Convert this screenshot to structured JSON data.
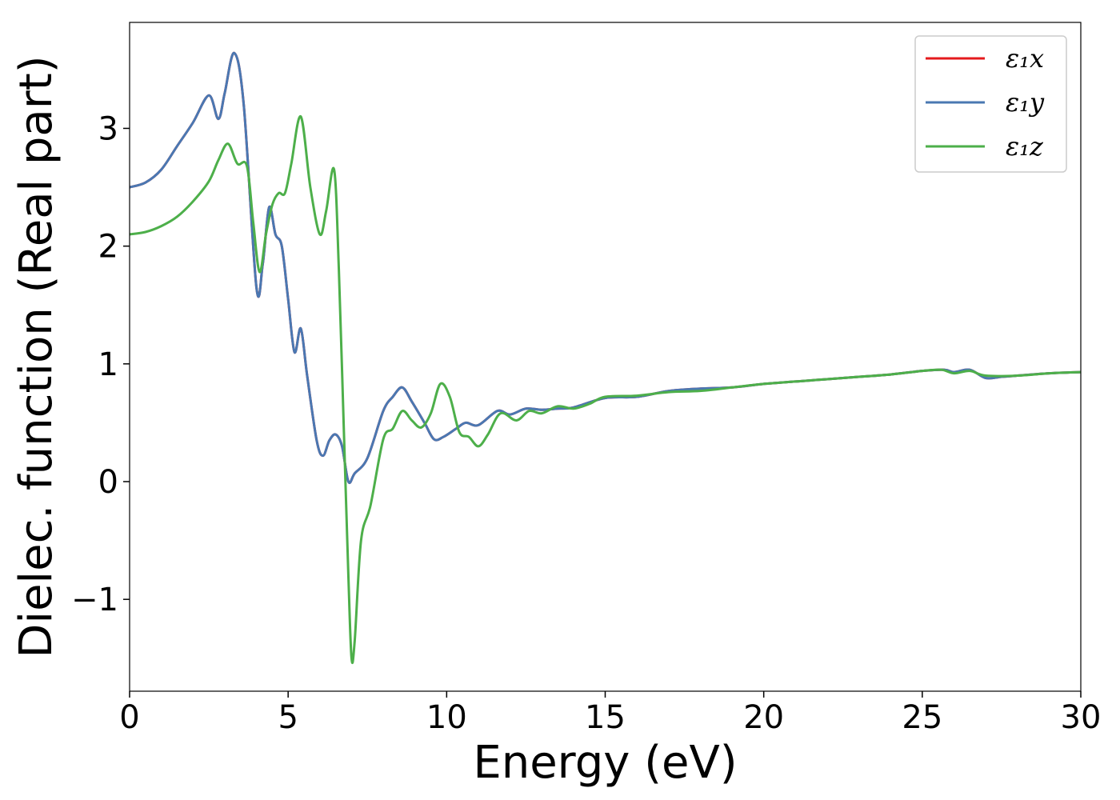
{
  "chart_data": {
    "type": "line",
    "title": "",
    "xlabel": "Energy (eV)",
    "ylabel": "Dielec. function (Real part)",
    "xlim": [
      0,
      30
    ],
    "ylim": [
      -1.78,
      3.9
    ],
    "xticks": [
      0,
      5,
      10,
      15,
      20,
      25,
      30
    ],
    "xtick_labels": [
      "0",
      "5",
      "10",
      "15",
      "20",
      "25",
      "30"
    ],
    "yticks": [
      -1,
      0,
      1,
      2,
      3
    ],
    "ytick_labels": [
      "−1",
      "0",
      "1",
      "2",
      "3"
    ],
    "grid": false,
    "legend_position": "top-right",
    "series": [
      {
        "name": "ε₁x",
        "color": "#e41a1c",
        "x": [
          0,
          0.5,
          1,
          1.5,
          2,
          2.5,
          2.8,
          3.0,
          3.3,
          3.6,
          4.0,
          4.2,
          4.4,
          4.6,
          4.8,
          5.0,
          5.2,
          5.4,
          5.6,
          5.9,
          6.1,
          6.3,
          6.5,
          6.7,
          6.9,
          7.1,
          7.5,
          8.0,
          8.3,
          8.6,
          8.9,
          9.3,
          9.6,
          9.9,
          10.3,
          10.6,
          11.0,
          11.6,
          12.0,
          12.5,
          13.0,
          13.5,
          14.0,
          15.0,
          16.0,
          17.0,
          18.0,
          19.0,
          20.0,
          21.0,
          22.0,
          23.0,
          24.0,
          25.0,
          25.7,
          26.0,
          26.5,
          27.0,
          27.5,
          28.0,
          29.0,
          30.0
        ],
        "values": [
          2.5,
          2.54,
          2.65,
          2.85,
          3.05,
          3.28,
          3.08,
          3.3,
          3.64,
          3.2,
          1.65,
          1.85,
          2.33,
          2.1,
          2.0,
          1.55,
          1.1,
          1.3,
          0.9,
          0.35,
          0.22,
          0.35,
          0.4,
          0.3,
          0.0,
          0.07,
          0.2,
          0.6,
          0.72,
          0.8,
          0.68,
          0.5,
          0.36,
          0.38,
          0.45,
          0.5,
          0.48,
          0.6,
          0.57,
          0.62,
          0.61,
          0.62,
          0.63,
          0.71,
          0.72,
          0.77,
          0.79,
          0.8,
          0.83,
          0.85,
          0.87,
          0.89,
          0.91,
          0.94,
          0.95,
          0.93,
          0.95,
          0.88,
          0.89,
          0.9,
          0.92,
          0.93
        ]
      },
      {
        "name": "ε₁y",
        "color": "#4a78b2",
        "x": [
          0,
          0.5,
          1,
          1.5,
          2,
          2.5,
          2.8,
          3.0,
          3.3,
          3.6,
          4.0,
          4.2,
          4.4,
          4.6,
          4.8,
          5.0,
          5.2,
          5.4,
          5.6,
          5.9,
          6.1,
          6.3,
          6.5,
          6.7,
          6.9,
          7.1,
          7.5,
          8.0,
          8.3,
          8.6,
          8.9,
          9.3,
          9.6,
          9.9,
          10.3,
          10.6,
          11.0,
          11.6,
          12.0,
          12.5,
          13.0,
          13.5,
          14.0,
          15.0,
          16.0,
          17.0,
          18.0,
          19.0,
          20.0,
          21.0,
          22.0,
          23.0,
          24.0,
          25.0,
          25.7,
          26.0,
          26.5,
          27.0,
          27.5,
          28.0,
          29.0,
          30.0
        ],
        "values": [
          2.5,
          2.54,
          2.65,
          2.85,
          3.05,
          3.28,
          3.08,
          3.3,
          3.64,
          3.2,
          1.65,
          1.85,
          2.33,
          2.1,
          2.0,
          1.55,
          1.1,
          1.3,
          0.9,
          0.35,
          0.22,
          0.35,
          0.4,
          0.3,
          0.0,
          0.07,
          0.2,
          0.6,
          0.72,
          0.8,
          0.68,
          0.5,
          0.36,
          0.38,
          0.45,
          0.5,
          0.48,
          0.6,
          0.57,
          0.62,
          0.61,
          0.62,
          0.63,
          0.71,
          0.72,
          0.77,
          0.79,
          0.8,
          0.83,
          0.85,
          0.87,
          0.89,
          0.91,
          0.94,
          0.95,
          0.93,
          0.95,
          0.88,
          0.89,
          0.9,
          0.92,
          0.93
        ]
      },
      {
        "name": "ε₁z",
        "color": "#4daf4a",
        "x": [
          0,
          0.5,
          1,
          1.5,
          2,
          2.5,
          2.8,
          3.1,
          3.4,
          3.7,
          3.9,
          4.1,
          4.3,
          4.5,
          4.7,
          4.9,
          5.1,
          5.4,
          5.7,
          6.0,
          6.2,
          6.45,
          6.6,
          6.75,
          6.9,
          7.0,
          7.1,
          7.3,
          7.6,
          8.0,
          8.3,
          8.6,
          8.9,
          9.2,
          9.5,
          9.8,
          10.1,
          10.4,
          10.7,
          11.0,
          11.3,
          11.7,
          12.2,
          12.6,
          13.0,
          13.5,
          14.0,
          14.5,
          15.0,
          16.0,
          17.0,
          18.0,
          19.0,
          20.0,
          21.0,
          22.0,
          23.0,
          24.0,
          25.0,
          25.6,
          26.0,
          26.5,
          27.0,
          28.0,
          29.0,
          30.0
        ],
        "values": [
          2.1,
          2.12,
          2.17,
          2.25,
          2.38,
          2.55,
          2.73,
          2.87,
          2.7,
          2.68,
          2.2,
          1.78,
          2.1,
          2.35,
          2.45,
          2.45,
          2.7,
          3.1,
          2.5,
          2.1,
          2.3,
          2.65,
          1.8,
          0.5,
          -0.8,
          -1.5,
          -1.35,
          -0.5,
          -0.2,
          0.36,
          0.45,
          0.6,
          0.52,
          0.46,
          0.58,
          0.83,
          0.72,
          0.42,
          0.38,
          0.3,
          0.4,
          0.58,
          0.52,
          0.6,
          0.58,
          0.64,
          0.62,
          0.66,
          0.72,
          0.73,
          0.76,
          0.77,
          0.8,
          0.83,
          0.85,
          0.87,
          0.89,
          0.91,
          0.94,
          0.95,
          0.92,
          0.94,
          0.9,
          0.9,
          0.92,
          0.93
        ]
      }
    ]
  }
}
